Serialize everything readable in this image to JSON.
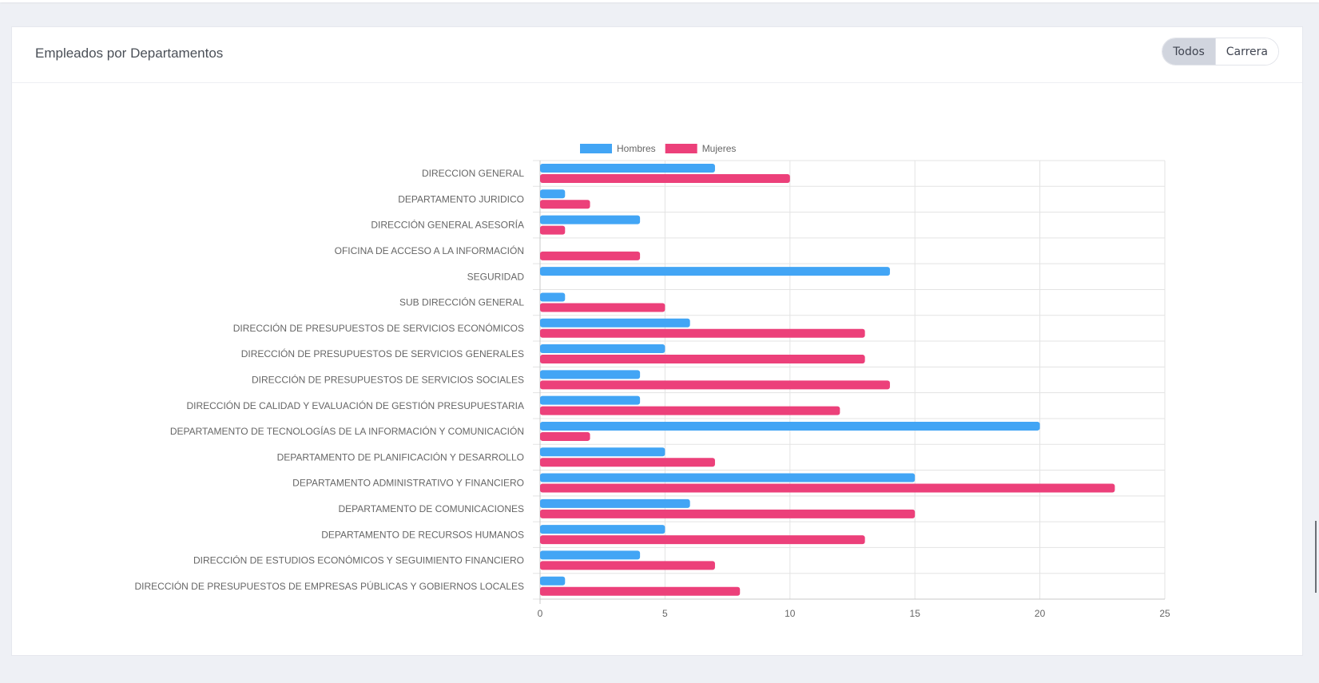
{
  "card": {
    "title": "Empleados por Departamentos",
    "filters": [
      {
        "label": "Todos",
        "active": true
      },
      {
        "label": "Carrera",
        "active": false
      }
    ]
  },
  "chart_data": {
    "type": "bar",
    "orientation": "horizontal",
    "categories": [
      "DIRECCION GENERAL",
      "DEPARTAMENTO JURIDICO",
      "DIRECCIÓN GENERAL ASESORÍA",
      "OFICINA DE ACCESO A LA INFORMACIÓN",
      "SEGURIDAD",
      "SUB DIRECCIÓN GENERAL",
      "DIRECCIÓN DE PRESUPUESTOS DE SERVICIOS ECONÓMICOS",
      "DIRECCIÓN DE PRESUPUESTOS DE SERVICIOS GENERALES",
      "DIRECCIÓN DE PRESUPUESTOS DE SERVICIOS SOCIALES",
      "DIRECCIÓN DE CALIDAD Y EVALUACIÓN DE GESTIÓN PRESUPUESTARIA",
      "DEPARTAMENTO DE TECNOLOGÍAS DE LA INFORMACIÓN Y COMUNICACIÓN",
      "DEPARTAMENTO DE PLANIFICACIÓN Y DESARROLLO",
      "DEPARTAMENTO ADMINISTRATIVO Y FINANCIERO",
      "DEPARTAMENTO DE COMUNICACIONES",
      "DEPARTAMENTO DE RECURSOS HUMANOS",
      "DIRECCIÓN DE ESTUDIOS ECONÓMICOS Y SEGUIMIENTO FINANCIERO",
      "DIRECCIÓN DE PRESUPUESTOS DE EMPRESAS PÚBLICAS Y GOBIERNOS LOCALES"
    ],
    "series": [
      {
        "name": "Hombres",
        "color": "#42a5f5",
        "values": [
          7,
          1,
          4,
          0,
          14,
          1,
          6,
          5,
          4,
          4,
          20,
          5,
          15,
          6,
          5,
          4,
          1
        ]
      },
      {
        "name": "Mujeres",
        "color": "#ec407a",
        "values": [
          10,
          2,
          1,
          4,
          0,
          5,
          13,
          13,
          14,
          12,
          2,
          7,
          23,
          15,
          13,
          7,
          8
        ]
      }
    ],
    "xlim": [
      0,
      25
    ],
    "xticks": [
      0,
      5,
      10,
      15,
      20,
      25
    ],
    "grid": true,
    "legend": "top"
  }
}
